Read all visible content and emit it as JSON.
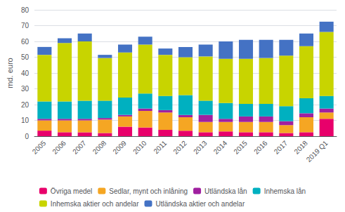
{
  "chart_data": {
    "type": "bar",
    "stacked": true,
    "y_label": "md. euro",
    "categories": [
      "2005",
      "2006",
      "2007",
      "2008",
      "2009",
      "2010",
      "2011",
      "2012",
      "2013",
      "2014",
      "2015",
      "2016",
      "2017",
      "2018",
      "2019 Q1"
    ],
    "series": [
      {
        "name": "Övriga medel",
        "color": "#E8006B",
        "values": [
          3.5,
          2.5,
          2.5,
          2.0,
          6.0,
          5.5,
          4.0,
          3.5,
          2.5,
          3.0,
          2.5,
          2.5,
          2.0,
          2.5,
          11.0
        ]
      },
      {
        "name": "Sedlar, mynt och inlåning",
        "color": "#F5A623",
        "values": [
          6.5,
          7.5,
          7.5,
          8.5,
          6.5,
          10.5,
          11.0,
          8.5,
          6.5,
          6.0,
          6.5,
          6.5,
          5.0,
          9.5,
          4.0
        ]
      },
      {
        "name": "Utländska lån",
        "color": "#A020A0",
        "values": [
          1.0,
          1.0,
          1.0,
          1.0,
          1.0,
          1.5,
          1.5,
          1.5,
          4.5,
          2.0,
          3.5,
          3.5,
          2.5,
          2.5,
          2.5
        ]
      },
      {
        "name": "Inhemska lån",
        "color": "#00B0C0",
        "values": [
          11.0,
          11.0,
          11.5,
          11.0,
          11.0,
          9.5,
          9.0,
          12.5,
          9.0,
          10.0,
          8.0,
          8.0,
          9.5,
          9.5,
          8.0
        ]
      },
      {
        "name": "Inhemska aktier och andelar",
        "color": "#C8D400",
        "values": [
          29.5,
          37.0,
          37.5,
          27.0,
          28.5,
          31.0,
          26.0,
          24.0,
          28.0,
          28.0,
          28.5,
          29.0,
          32.0,
          33.0,
          40.5
        ]
      },
      {
        "name": "Utländska aktier och andelar",
        "color": "#4472C4",
        "values": [
          5.0,
          3.0,
          5.0,
          2.0,
          5.0,
          5.0,
          4.0,
          6.5,
          7.5,
          11.0,
          12.0,
          11.5,
          10.0,
          8.0,
          6.5
        ]
      }
    ],
    "ylim": [
      0,
      80
    ],
    "yticks": [
      0,
      10,
      20,
      30,
      40,
      50,
      60,
      70,
      80
    ],
    "grid": true,
    "legend": "bottom"
  }
}
